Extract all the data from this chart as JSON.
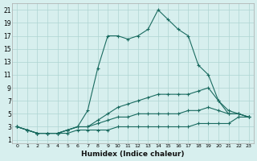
{
  "xlabel": "Humidex (Indice chaleur)",
  "background_color": "#d7efee",
  "grid_color": "#aed4d2",
  "line_color": "#1a6b60",
  "xlim": [
    -0.5,
    23.5
  ],
  "ylim": [
    0.5,
    22
  ],
  "xticks": [
    0,
    1,
    2,
    3,
    4,
    5,
    6,
    7,
    8,
    9,
    10,
    11,
    12,
    13,
    14,
    15,
    16,
    17,
    18,
    19,
    20,
    21,
    22,
    23
  ],
  "yticks": [
    1,
    3,
    5,
    7,
    9,
    11,
    13,
    15,
    17,
    19,
    21
  ],
  "series": [
    {
      "x": [
        0,
        1,
        2,
        3,
        4,
        5,
        6,
        7,
        8,
        9,
        10,
        11,
        12,
        13,
        14,
        15,
        16,
        17,
        18,
        19,
        20,
        21,
        22,
        23
      ],
      "y": [
        3,
        2.5,
        2,
        2,
        2,
        2,
        2.5,
        2.5,
        2.5,
        2.5,
        3,
        3,
        3,
        3,
        3,
        3,
        3,
        3,
        3.5,
        3.5,
        3.5,
        3.5,
        4.5,
        4.5
      ],
      "style": "-",
      "marker": "+"
    },
    {
      "x": [
        0,
        1,
        2,
        3,
        4,
        5,
        6,
        7,
        8,
        9,
        10,
        11,
        12,
        13,
        14,
        15,
        16,
        17,
        18,
        19,
        20,
        21,
        22,
        23
      ],
      "y": [
        3,
        2.5,
        2,
        2,
        2,
        2.5,
        3,
        3,
        3.5,
        4,
        4.5,
        4.5,
        5,
        5,
        5,
        5,
        5,
        5.5,
        5.5,
        6,
        5.5,
        5,
        5,
        4.5
      ],
      "style": "-",
      "marker": "+"
    },
    {
      "x": [
        0,
        1,
        2,
        3,
        4,
        5,
        6,
        7,
        8,
        9,
        10,
        11,
        12,
        13,
        14,
        15,
        16,
        17,
        18,
        19,
        20,
        21,
        22,
        23
      ],
      "y": [
        3,
        2.5,
        2,
        2,
        2,
        2.5,
        3,
        3,
        4,
        5,
        6,
        6.5,
        7,
        7.5,
        8,
        8,
        8,
        8,
        8.5,
        9,
        7,
        5,
        5,
        4.5
      ],
      "style": "-",
      "marker": "+"
    },
    {
      "x": [
        0,
        1,
        2,
        3,
        4,
        5,
        6,
        7,
        8,
        9,
        10,
        11,
        12,
        13,
        14,
        15,
        16,
        17,
        18,
        19,
        20,
        21,
        22,
        23
      ],
      "y": [
        3,
        2.5,
        2,
        2,
        2,
        2.5,
        3,
        5.5,
        12,
        17,
        17,
        16.5,
        17,
        18,
        21,
        19.5,
        18,
        17,
        12.5,
        11,
        7,
        5.5,
        5,
        4.5
      ],
      "style": "-",
      "marker": "+"
    }
  ]
}
